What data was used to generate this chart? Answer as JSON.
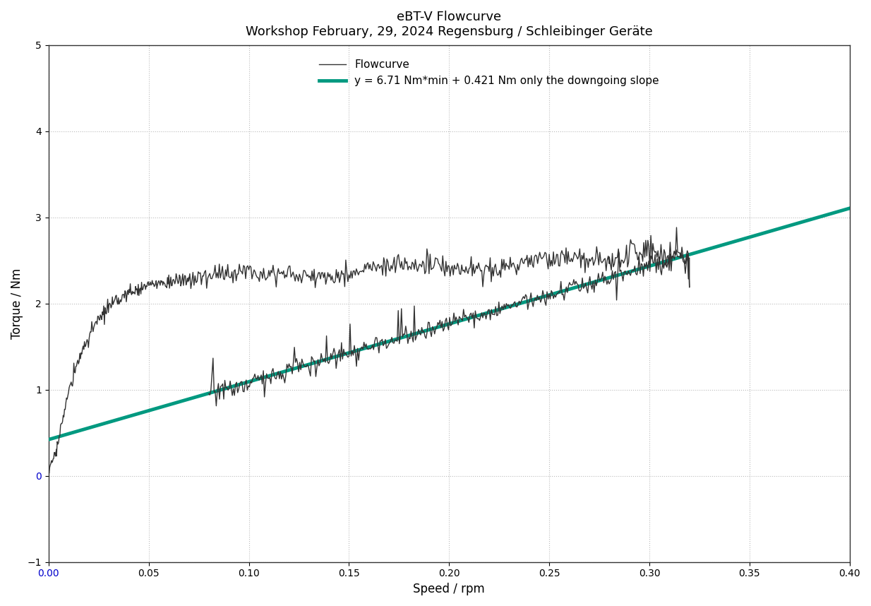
{
  "title_line1": "eBT-V Flowcurve",
  "title_line2": "Workshop February, 29, 2024 Regensburg / Schleibinger Geräte",
  "xlabel": "Speed / rpm",
  "ylabel": "Torque / Nm",
  "xlim": [
    0,
    0.4
  ],
  "ylim": [
    -1,
    5
  ],
  "xticks": [
    0,
    0.05,
    0.1,
    0.15,
    0.2,
    0.25,
    0.3,
    0.35,
    0.4
  ],
  "yticks": [
    -1,
    0,
    1,
    2,
    3,
    4,
    5
  ],
  "ytick_labels": [
    "-1",
    "0",
    "1",
    "2",
    "3",
    "4",
    "5"
  ],
  "flowcurve_color": "#333333",
  "fit_color": "#009980",
  "fit_slope": 6.71,
  "fit_intercept": 0.421,
  "fit_x_start": 0.0,
  "fit_x_end": 0.4,
  "legend_flowcurve": "Flowcurve",
  "legend_fit": "y = 6.71 Nm*min + 0.421 Nm only the downgoing slope",
  "background_color": "#ffffff",
  "title_fontsize": 13,
  "label_fontsize": 12,
  "tick_fontsize": 10,
  "legend_fontsize": 11,
  "flowcurve_linewidth": 1.0,
  "fit_linewidth": 3.5,
  "grid_color": "#bbbbbb",
  "grid_linestyle": ":",
  "grid_linewidth": 0.8,
  "zero_tick_color": "#0000cc"
}
